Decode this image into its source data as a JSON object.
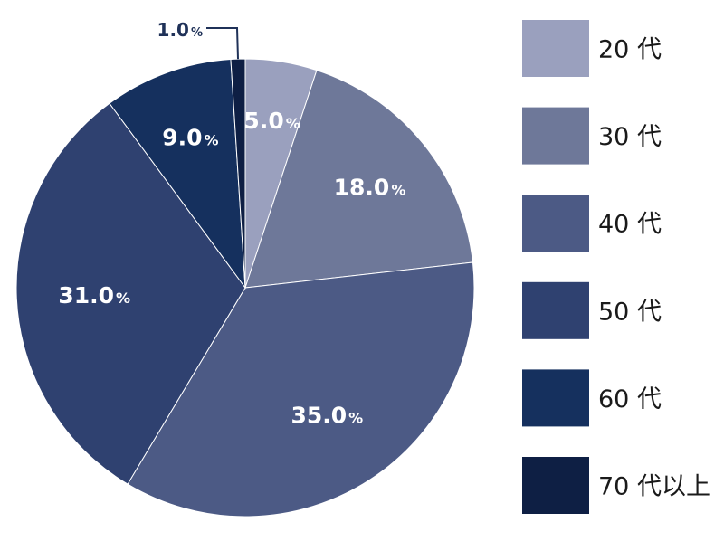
{
  "chart_data": {
    "type": "pie",
    "title": "",
    "categories": [
      "20 代",
      "30 代",
      "40 代",
      "50 代",
      "60 代",
      "70 代以上"
    ],
    "values": [
      5.0,
      18.0,
      35.0,
      31.0,
      9.0,
      1.0
    ],
    "value_labels": [
      "5.0",
      "18.0",
      "35.0",
      "31.0",
      "9.0",
      "1.0"
    ],
    "unit": "%",
    "colors": [
      "#9aa0be",
      "#6e7899",
      "#4c5a85",
      "#2f4170",
      "#15305e",
      "#0e1f44"
    ],
    "label_colors": [
      "#ffffff",
      "#ffffff",
      "#ffffff",
      "#ffffff",
      "#ffffff",
      "#1f3158"
    ],
    "start_angle": "12 o'clock",
    "direction": "clockwise",
    "legend_position": "right"
  }
}
